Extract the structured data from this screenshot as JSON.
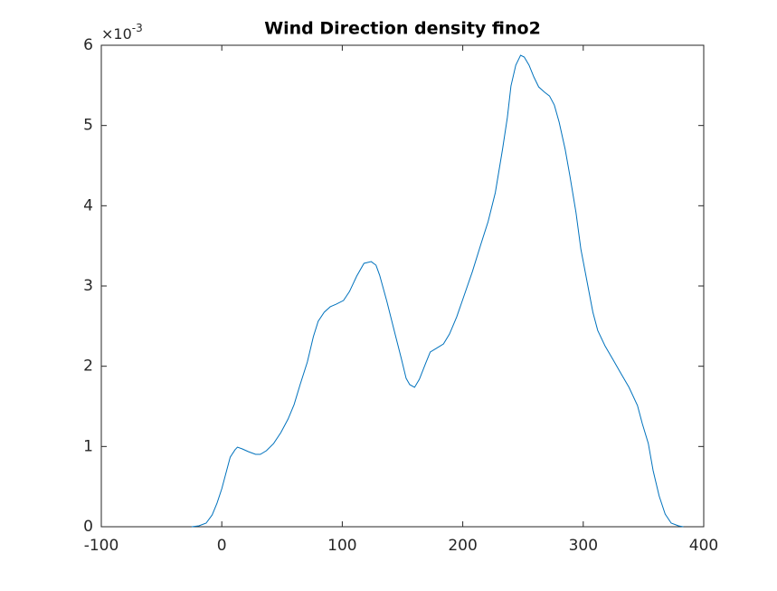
{
  "chart_data": {
    "type": "line",
    "title": "Wind Direction density fino2",
    "y_multiplier": {
      "base": "×10",
      "exponent": "-3"
    },
    "x": [
      -25,
      -19,
      -13,
      -8,
      -4,
      0,
      4,
      7,
      11,
      13,
      17,
      22,
      28,
      32,
      37,
      43,
      49,
      55,
      60,
      65,
      71,
      76,
      80,
      85,
      90,
      95,
      101,
      106,
      112,
      118,
      124,
      128,
      131,
      137,
      144,
      149,
      153,
      156,
      160,
      164,
      169,
      173,
      178,
      184,
      189,
      195,
      201,
      208,
      215,
      221,
      227,
      233,
      237,
      240,
      244,
      248,
      251,
      255,
      259,
      263,
      268,
      272,
      276,
      280,
      285,
      289,
      294,
      298,
      303,
      308,
      312,
      318,
      325,
      331,
      338,
      345,
      349,
      354,
      358,
      363,
      368,
      373,
      379,
      383
    ],
    "series": [
      {
        "color": "#0072bd",
        "values": [
          0,
          1.1e-05,
          4.5e-05,
          0.000147,
          0.000293,
          0.000474,
          0.000699,
          0.000868,
          0.000959,
          0.000992,
          0.00097,
          0.000936,
          0.000902,
          0.000902,
          0.000947,
          0.001037,
          0.001173,
          0.001342,
          0.001522,
          0.001771,
          0.002053,
          0.002368,
          0.00256,
          0.002673,
          0.002741,
          0.002774,
          0.002819,
          0.002932,
          0.003124,
          0.003282,
          0.003304,
          0.003259,
          0.003135,
          0.002808,
          0.002391,
          0.002097,
          0.001849,
          0.001771,
          0.001737,
          0.001838,
          0.00203,
          0.002177,
          0.002222,
          0.002278,
          0.002402,
          0.002616,
          0.002876,
          0.00318,
          0.003519,
          0.003801,
          0.004162,
          0.004703,
          0.005098,
          0.005492,
          0.005752,
          0.005876,
          0.005853,
          0.005752,
          0.005605,
          0.005481,
          0.005413,
          0.005368,
          0.005255,
          0.005041,
          0.004703,
          0.004365,
          0.003913,
          0.003462,
          0.003068,
          0.002673,
          0.002447,
          0.002256,
          0.002075,
          0.001917,
          0.001737,
          0.001511,
          0.001286,
          0.001038,
          0.000699,
          0.000383,
          0.000158,
          4.5e-05,
          1.1e-05,
          0
        ]
      }
    ],
    "xlim": [
      -100,
      400
    ],
    "xticks": [
      -100,
      0,
      100,
      200,
      300,
      400
    ],
    "ylim": [
      0,
      0.006
    ],
    "yticks": [
      0,
      {
        "value": 0.001,
        "label": "1"
      },
      {
        "value": 0.002,
        "label": "2"
      },
      {
        "value": 0.003,
        "label": "3"
      },
      {
        "value": 0.004,
        "label": "4"
      },
      {
        "value": 0.005,
        "label": "5"
      },
      {
        "value": 0.006,
        "label": "6"
      }
    ],
    "grid": false
  }
}
